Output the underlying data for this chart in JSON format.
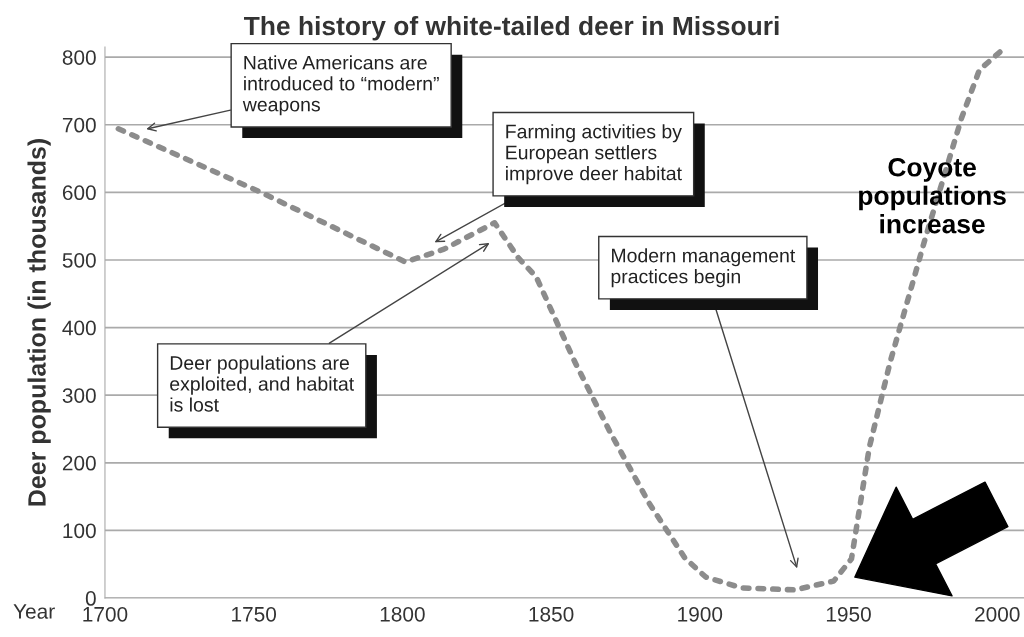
{
  "chart_data": {
    "type": "line",
    "title": "The history of white-tailed deer in Missouri",
    "xlabel": "Year",
    "ylabel": "Deer population (in thousands)",
    "x": [
      1704.5,
      1752,
      1801,
      1814,
      1831,
      1839,
      1845,
      1858,
      1870,
      1883,
      1895,
      1902,
      1914,
      1932,
      1945,
      1951,
      1957,
      1964,
      1970,
      1976,
      1982,
      1988,
      1994,
      2001
    ],
    "series": [
      {
        "color": "#8c8c8c",
        "values": [
          694,
          601,
          497,
          516,
          555,
          503,
          475,
          349,
          244,
          140,
          59,
          31,
          15,
          12,
          25,
          58,
          223,
          349,
          442,
          535,
          622,
          710,
          781,
          808
        ]
      }
    ],
    "xlim": [
      1700,
      2009
    ],
    "ylim": [
      0,
      815
    ],
    "xticks": [
      1700,
      1750,
      1800,
      1850,
      1900,
      1950,
      2000
    ],
    "yticks": [
      0,
      100,
      200,
      300,
      400,
      500,
      600,
      700,
      800
    ],
    "grid": "y",
    "line_style": "dotted",
    "marker": "none",
    "annotations": [
      "Native Americans are\nintroduced to “modern”\nweapons",
      "Farming activities by\nEuropean settlers\nimprove deer habitat",
      "Deer populations are\nexploited, and habitat\nis lost",
      "Modern management\npractices begin",
      "Coyote\npopulations\nincrease"
    ]
  }
}
